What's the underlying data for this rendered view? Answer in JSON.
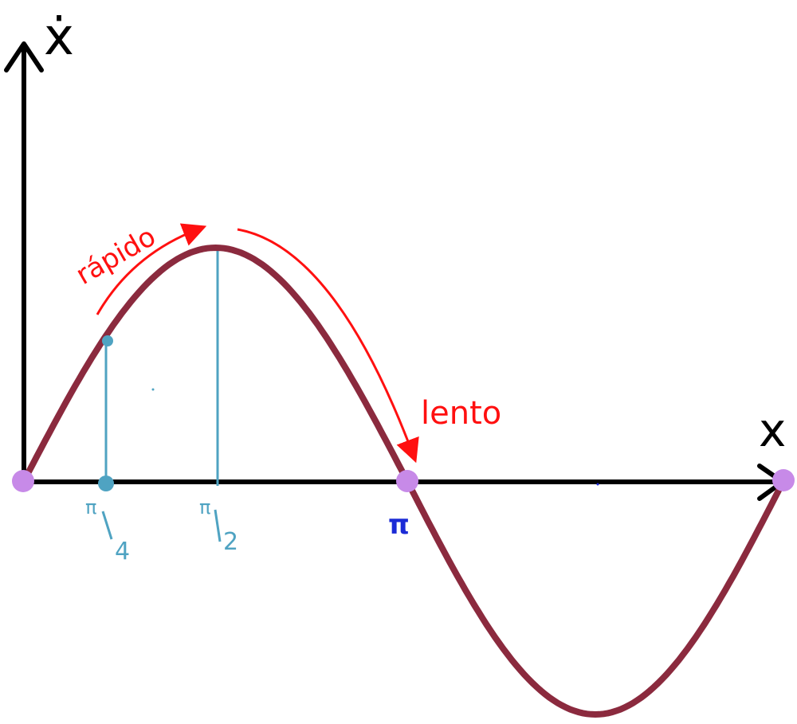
{
  "diagram": {
    "axes": {
      "y_label": "ẋ",
      "x_label": "x"
    },
    "ticks": [
      {
        "id": "pi4",
        "text": "π/4",
        "num": "π",
        "den": "4"
      },
      {
        "id": "pi2",
        "text": "π/2",
        "num": "π",
        "den": "2"
      },
      {
        "id": "pi",
        "text": "π"
      }
    ],
    "annotations": {
      "fast": "rápido",
      "slow": "lento"
    },
    "colors": {
      "axis": "#000000",
      "curve": "#8b2a3e",
      "fixed_point": "#c78ae8",
      "guide": "#4fa3c2",
      "arrow": "#ff1010",
      "pi_label": "#1b2bd6"
    }
  }
}
